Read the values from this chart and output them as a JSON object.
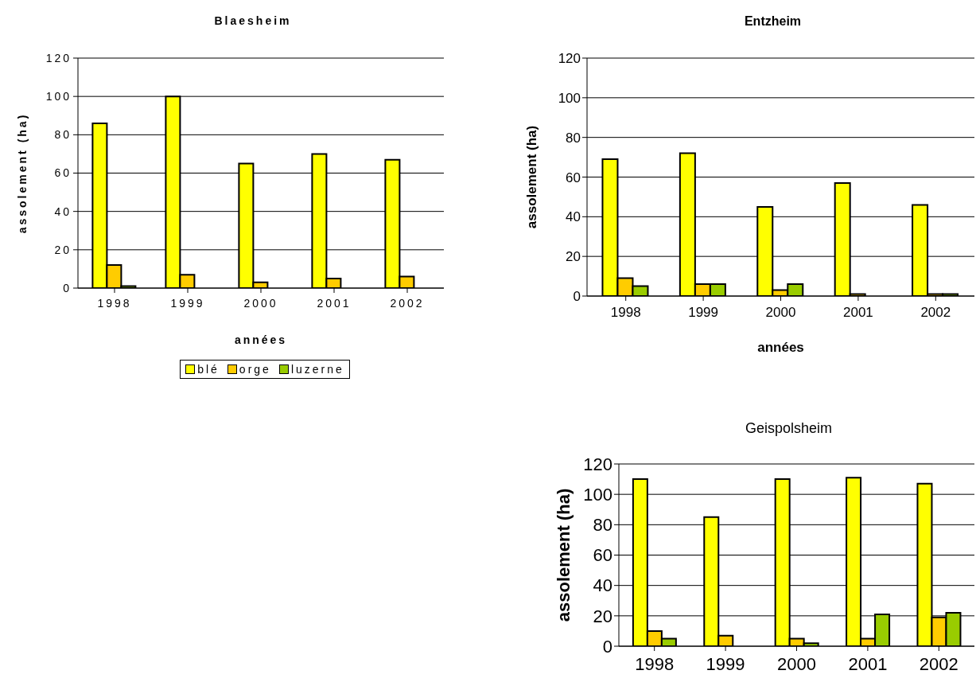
{
  "chart_data": [
    {
      "type": "bar",
      "title": "Blaesheim",
      "xlabel": "années",
      "ylabel": "assolement (ha)",
      "categories": [
        "1998",
        "1999",
        "2000",
        "2001",
        "2002"
      ],
      "series": [
        {
          "name": "blé",
          "color": "#ffff00",
          "values": [
            86,
            100,
            65,
            70,
            67
          ]
        },
        {
          "name": "orge",
          "color": "#ffcc00",
          "values": [
            12,
            7,
            3,
            5,
            6
          ]
        },
        {
          "name": "luzerne",
          "color": "#99cc00",
          "values": [
            1,
            0,
            0,
            0,
            0
          ]
        }
      ],
      "ylim": [
        0,
        120
      ],
      "yticks": [
        0,
        20,
        40,
        60,
        80,
        100,
        120
      ],
      "grid": "y",
      "legend": "bottom"
    },
    {
      "type": "bar",
      "title": "Entzheim",
      "xlabel": "années",
      "ylabel": "assolement (ha)",
      "categories": [
        "1998",
        "1999",
        "2000",
        "2001",
        "2002"
      ],
      "series": [
        {
          "color": "#ffff00",
          "values": [
            69,
            72,
            45,
            57,
            46
          ]
        },
        {
          "color": "#ffcc00",
          "values": [
            9,
            6,
            3,
            1,
            1
          ]
        },
        {
          "color": "#99cc00",
          "values": [
            5,
            6,
            6,
            0,
            1
          ]
        }
      ],
      "ylim": [
        0,
        120
      ],
      "yticks": [
        0,
        20,
        40,
        60,
        80,
        100,
        120
      ],
      "grid": "y"
    },
    {
      "type": "bar",
      "title": "Geispolsheim",
      "ylabel": "assolement (ha)",
      "categories": [
        "1998",
        "1999",
        "2000",
        "2001",
        "2002"
      ],
      "series": [
        {
          "color": "#ffff00",
          "values": [
            110,
            85,
            110,
            111,
            107
          ]
        },
        {
          "color": "#ffcc00",
          "values": [
            10,
            7,
            5,
            5,
            19
          ]
        },
        {
          "color": "#99cc00",
          "values": [
            5,
            0,
            2,
            21,
            22
          ]
        }
      ],
      "ylim": [
        0,
        120
      ],
      "yticks": [
        0,
        20,
        40,
        60,
        80,
        100,
        120
      ],
      "grid": "y"
    }
  ]
}
